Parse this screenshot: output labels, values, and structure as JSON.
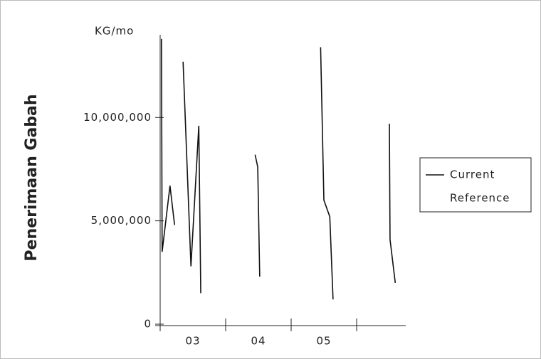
{
  "chart_data": {
    "type": "line",
    "y_label": "Penerimaan Gabah",
    "y_unit": "KG/mo",
    "x": [
      3.02,
      3.03,
      3.15,
      3.22,
      3.28,
      3.35,
      3.47,
      3.59,
      3.62,
      4.0,
      4.45,
      4.49,
      4.52,
      5.0,
      5.45,
      5.5,
      5.59,
      5.64,
      6.0,
      6.5,
      6.51,
      6.59
    ],
    "series": [
      {
        "name": "Current",
        "color": "#111111",
        "values": [
          13800000,
          3500000,
          6700000,
          4800000,
          null,
          12700000,
          2800000,
          9600000,
          1500000,
          null,
          8200000,
          7600000,
          2300000,
          null,
          13400000,
          6000000,
          5200000,
          1200000,
          null,
          9700000,
          4100000,
          2000000
        ]
      },
      {
        "name": "Reference",
        "color": null,
        "values": [
          null,
          null,
          null,
          null,
          null,
          null,
          null,
          null,
          null,
          null,
          null,
          null,
          null,
          null,
          null,
          null,
          null,
          null,
          null,
          null,
          null,
          null
        ]
      }
    ],
    "xlim": [
      3,
      6.75
    ],
    "x_tick_marks": [
      3,
      4,
      5,
      6
    ],
    "xticks": [
      {
        "value": 3.5,
        "label": "03"
      },
      {
        "value": 4.5,
        "label": "04"
      },
      {
        "value": 5.5,
        "label": "05"
      }
    ],
    "ylim": [
      0,
      14000000
    ],
    "yticks": [
      0,
      {
        "value": 5000000,
        "label": "5,000,000"
      },
      {
        "value": 10000000,
        "label": "10,000,000"
      }
    ],
    "legend": "right"
  }
}
